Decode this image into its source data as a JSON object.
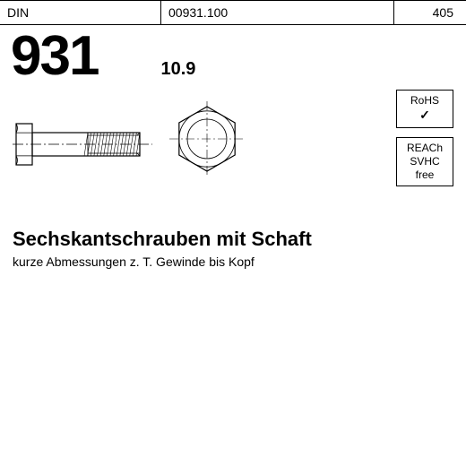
{
  "header": {
    "standard": "DIN",
    "code": "00931.100",
    "ref": "405"
  },
  "title": {
    "number": "931",
    "grade": "10.9"
  },
  "badges": {
    "rohs_line1": "RoHS",
    "rohs_check": "✓",
    "reach_line1": "REACh",
    "reach_line2": "SVHC",
    "reach_line3": "free"
  },
  "description": {
    "title": "Sechskantschrauben mit Schaft",
    "subtitle": "kurze Abmessungen z. T. Gewinde bis Kopf"
  },
  "style": {
    "stroke": "#000000",
    "stroke_width": 1.2,
    "bg": "#ffffff",
    "bolt_side": {
      "head_w": 18,
      "head_h": 46,
      "shaft_w": 120,
      "shaft_h": 26,
      "thread_start": 62,
      "thread_lines": 16
    },
    "bolt_front": {
      "hex_r": 36,
      "circle_r": 22
    }
  }
}
